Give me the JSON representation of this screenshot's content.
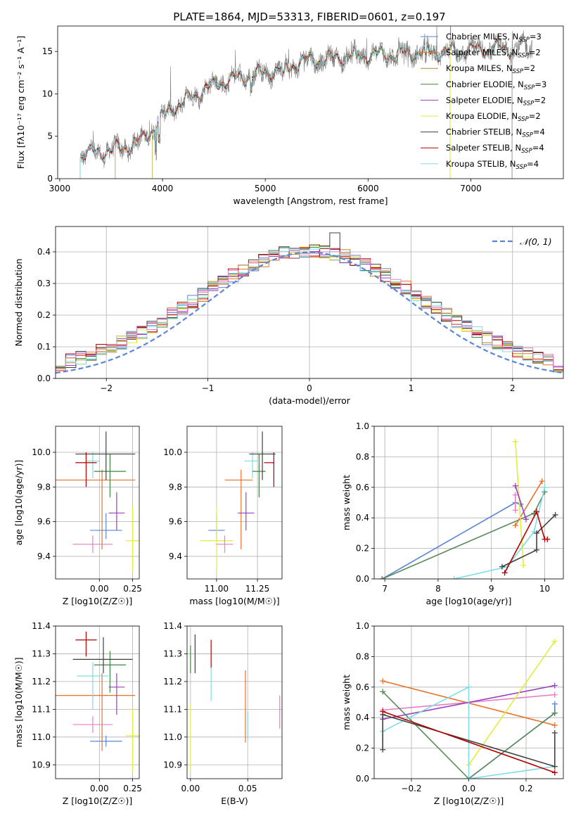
{
  "figure_title": "PLATE=1864, MJD=53313, FIBERID=0601, z=0.197",
  "colors": {
    "chabrier_miles": "#5b86d6",
    "salpeter_miles": "#e8712a",
    "kroupa_miles": "#b5862d",
    "chabrier_elodie": "#3f8443",
    "salpeter_elodie": "#9a3fbf",
    "kroupa_elodie": "#e0ee3a",
    "chabrier_stelib": "#404040",
    "salpeter_stelib": "#b30000",
    "kroupa_stelib": "#7fdde6",
    "pink": "#e87fc4",
    "darkgreen": "#5a8a5a",
    "data_gray": "#808080",
    "normal": "#5b86d6"
  },
  "chart_data": [
    {
      "id": "spectrum",
      "type": "line",
      "title": "",
      "xlabel": "wavelength [Angstrom, rest frame]",
      "ylabel": "Flux [fλ10⁻¹⁷ erg cm⁻² s⁻¹ A⁻¹]",
      "xlim": [
        2980,
        7900
      ],
      "ylim": [
        0,
        18
      ],
      "xticks": [
        3000,
        4000,
        5000,
        6000,
        7000
      ],
      "yticks": [
        0,
        5,
        10,
        15
      ],
      "legend_position": "right",
      "legend": [
        "Chabrier MILES, N_SSP=3",
        "Salpeter MILES, N_SSP=2",
        "Kroupa MILES, N_SSP=2",
        "Chabrier ELODIE, N_SSP=3",
        "Salpeter ELODIE, N_SSP=2",
        "Kroupa ELODIE, N_SSP=2",
        "Chabrier STELIB, N_SSP=4",
        "Salpeter STELIB, N_SSP=4",
        "Kroupa STELIB, N_SSP=4"
      ],
      "legend_display": [
        [
          "Chabrier MILES, N",
          "SSP",
          "=3"
        ],
        [
          "Salpeter MILES, N",
          "SSP",
          "=2"
        ],
        [
          "Kroupa MILES, N",
          "SSP",
          "=2"
        ],
        [
          "Chabrier ELODIE, N",
          "SSP",
          "=3"
        ],
        [
          "Salpeter ELODIE, N",
          "SSP",
          "=2"
        ],
        [
          "Kroupa ELODIE, N",
          "SSP",
          "=2"
        ],
        [
          "Chabrier STELIB, N",
          "SSP",
          "=4"
        ],
        [
          "Salpeter STELIB, N",
          "SSP",
          "=4"
        ],
        [
          "Kroupa STELIB, N",
          "SSP",
          "=4"
        ]
      ],
      "spectrum_envelope": {
        "x": [
          3200,
          3400,
          3600,
          3700,
          3800,
          3900,
          4000,
          4100,
          4200,
          4300,
          4400,
          4500,
          4600,
          4800,
          5000,
          5200,
          5400,
          5600,
          5800,
          6000,
          6200,
          6400,
          6600,
          6800,
          7000,
          7200,
          7400,
          7600
        ],
        "y": [
          2.8,
          3.2,
          3.6,
          4.0,
          4.6,
          5.8,
          7.3,
          8.4,
          9.0,
          9.8,
          10.5,
          11.0,
          11.5,
          12.0,
          12.5,
          13.0,
          14.0,
          14.0,
          14.5,
          14.6,
          14.6,
          14.8,
          15.0,
          15.0,
          15.2,
          15.3,
          15.3,
          15.5
        ]
      }
    },
    {
      "id": "residuals",
      "type": "histogram",
      "xlabel": "(data-model)/error",
      "ylabel": "Normed distribution",
      "xlim": [
        -2.5,
        2.5
      ],
      "ylim": [
        0,
        0.48
      ],
      "xticks": [
        -2,
        -1,
        0,
        1,
        2
      ],
      "yticks": [
        0.0,
        0.1,
        0.2,
        0.3,
        0.4
      ],
      "grid": true,
      "legend": [
        "𝒩(0, 1)"
      ],
      "legend_position": "top-right",
      "series_note_binwidth": 0.1,
      "highlight_bin": {
        "x": 0.25,
        "y": 0.46
      }
    },
    {
      "id": "age_vs_Z",
      "type": "errorbar",
      "xlabel": "Z [log10(Z/Z☉)]",
      "ylabel": "age [log10(age/yr)]",
      "xlim": [
        -0.33,
        0.3
      ],
      "ylim": [
        9.27,
        10.15
      ],
      "xticks": [
        0.0,
        0.25
      ],
      "yticks": [
        9.4,
        9.6,
        9.8,
        10.0
      ],
      "grid": true,
      "points": [
        {
          "x": 0.05,
          "y": 9.55,
          "xerr": [
            0.12,
            0.12
          ],
          "yerr": [
            0.05,
            0.1
          ],
          "c": "chabrier_miles"
        },
        {
          "x": 0.02,
          "y": 9.84,
          "xerr": [
            0.36,
            0.25
          ],
          "yerr": [
            0.4,
            0.06
          ],
          "c": "salpeter_miles"
        },
        {
          "x": -0.05,
          "y": 9.95,
          "xerr": [
            0.05,
            0.05
          ],
          "yerr": [
            0.1,
            0.05
          ],
          "c": "kroupa_stelib"
        },
        {
          "x": 0.08,
          "y": 9.89,
          "xerr": [
            0.12,
            0.12
          ],
          "yerr": [
            0.15,
            0.1
          ],
          "c": "chabrier_elodie"
        },
        {
          "x": 0.13,
          "y": 9.65,
          "xerr": [
            0.06,
            0.06
          ],
          "yerr": [
            0.1,
            0.12
          ],
          "c": "salpeter_elodie"
        },
        {
          "x": 0.25,
          "y": 9.49,
          "xerr": [
            0.05,
            0.08
          ],
          "yerr": [
            0.18,
            0.2
          ],
          "c": "kroupa_elodie"
        },
        {
          "x": 0.05,
          "y": 9.99,
          "xerr": [
            0.23,
            0.22
          ],
          "yerr": [
            0.15,
            0.13
          ],
          "c": "chabrier_stelib"
        },
        {
          "x": -0.1,
          "y": 9.94,
          "xerr": [
            0.08,
            0.08
          ],
          "yerr": [
            0.14,
            0.06
          ],
          "c": "salpeter_stelib"
        },
        {
          "x": -0.05,
          "y": 9.47,
          "xerr": [
            0.15,
            0.15
          ],
          "yerr": [
            0.05,
            0.05
          ],
          "c": "pink"
        }
      ]
    },
    {
      "id": "age_vs_mass",
      "type": "errorbar",
      "xlabel": "mass [log10(M/M☉)]",
      "ylabel": "",
      "xlim": [
        10.82,
        11.4
      ],
      "ylim": [
        9.27,
        10.15
      ],
      "xticks": [
        11.0,
        11.25
      ],
      "yticks": [
        9.4,
        9.6,
        9.8,
        10.0
      ],
      "grid": true,
      "points": [
        {
          "x": 11.0,
          "y": 9.55,
          "xerr": [
            0.05,
            0.05
          ],
          "yerr": [
            0.05,
            0.1
          ],
          "c": "chabrier_miles"
        },
        {
          "x": 11.15,
          "y": 9.84,
          "xerr": [
            0.1,
            0.07
          ],
          "yerr": [
            0.4,
            0.06
          ],
          "c": "salpeter_miles"
        },
        {
          "x": 11.22,
          "y": 9.95,
          "xerr": [
            0.05,
            0.03
          ],
          "yerr": [
            0.1,
            0.05
          ],
          "c": "kroupa_stelib"
        },
        {
          "x": 11.26,
          "y": 9.89,
          "xerr": [
            0.04,
            0.04
          ],
          "yerr": [
            0.15,
            0.1
          ],
          "c": "chabrier_elodie"
        },
        {
          "x": 11.18,
          "y": 9.65,
          "xerr": [
            0.05,
            0.05
          ],
          "yerr": [
            0.1,
            0.12
          ],
          "c": "salpeter_elodie"
        },
        {
          "x": 11.0,
          "y": 9.49,
          "xerr": [
            0.1,
            0.1
          ],
          "yerr": [
            0.18,
            0.2
          ],
          "c": "kroupa_elodie"
        },
        {
          "x": 11.28,
          "y": 9.99,
          "xerr": [
            0.08,
            0.08
          ],
          "yerr": [
            0.15,
            0.13
          ],
          "c": "chabrier_stelib"
        },
        {
          "x": 11.35,
          "y": 9.94,
          "xerr": [
            0.06,
            0.0
          ],
          "yerr": [
            0.14,
            0.06
          ],
          "c": "salpeter_stelib"
        },
        {
          "x": 11.05,
          "y": 9.47,
          "xerr": [
            0.05,
            0.05
          ],
          "yerr": [
            0.05,
            0.05
          ],
          "c": "pink"
        }
      ]
    },
    {
      "id": "weight_vs_age",
      "type": "line",
      "xlabel": "age [log10(age/yr)]",
      "ylabel": "mass weight",
      "xlim": [
        6.8,
        10.35
      ],
      "ylim": [
        0,
        1
      ],
      "xticks": [
        7,
        8,
        9,
        10
      ],
      "yticks": [
        0.0,
        0.2,
        0.4,
        0.6,
        0.8,
        1.0
      ],
      "grid": true,
      "series": [
        {
          "c": "chabrier_miles",
          "x": [
            6.95,
            9.45,
            9.55
          ],
          "y": [
            0.0,
            0.5,
            0.49
          ]
        },
        {
          "c": "darkgreen",
          "x": [
            6.95,
            9.8,
            10.0
          ],
          "y": [
            0.0,
            0.43,
            0.57
          ]
        },
        {
          "c": "salpeter_miles",
          "x": [
            9.45,
            9.95
          ],
          "y": [
            0.35,
            0.64
          ]
        },
        {
          "c": "pink",
          "x": [
            9.45,
            9.45
          ],
          "y": [
            0.45,
            0.55
          ]
        },
        {
          "c": "kroupa_elodie",
          "x": [
            9.45,
            9.6
          ],
          "y": [
            0.9,
            0.09
          ]
        },
        {
          "c": "salpeter_elodie",
          "x": [
            9.45,
            9.65
          ],
          "y": [
            0.61,
            0.39
          ]
        },
        {
          "c": "kroupa_stelib",
          "x": [
            8.3,
            9.3,
            9.8,
            10.0
          ],
          "y": [
            0.0,
            0.08,
            0.31,
            0.6
          ]
        },
        {
          "c": "chabrier_stelib",
          "x": [
            9.2,
            9.85,
            9.85,
            10.2
          ],
          "y": [
            0.08,
            0.19,
            0.3,
            0.42
          ]
        },
        {
          "c": "salpeter_stelib",
          "x": [
            9.25,
            9.85,
            10.0,
            10.05
          ],
          "y": [
            0.04,
            0.44,
            0.26,
            0.26
          ]
        }
      ]
    },
    {
      "id": "mass_vs_Z",
      "type": "errorbar",
      "xlabel": "Z [log10(Z/Z☉)]",
      "ylabel": "mass [log10(M/M☉)]",
      "xlim": [
        -0.33,
        0.3
      ],
      "ylim": [
        10.85,
        11.4
      ],
      "xticks": [
        0.0,
        0.25
      ],
      "yticks": [
        10.9,
        11.0,
        11.1,
        11.2,
        11.3,
        11.4
      ],
      "grid": true,
      "points": [
        {
          "x": 0.05,
          "y": 10.985,
          "xerr": [
            0.12,
            0.12
          ],
          "yerr": [
            0.02,
            0.02
          ],
          "c": "chabrier_miles"
        },
        {
          "x": 0.02,
          "y": 11.15,
          "xerr": [
            0.36,
            0.25
          ],
          "yerr": [
            0.2,
            0.08
          ],
          "c": "salpeter_miles"
        },
        {
          "x": -0.05,
          "y": 11.22,
          "xerr": [
            0.12,
            0.12
          ],
          "yerr": [
            0.12,
            0.05
          ],
          "c": "kroupa_stelib"
        },
        {
          "x": 0.08,
          "y": 11.26,
          "xerr": [
            0.12,
            0.12
          ],
          "yerr": [
            0.1,
            0.05
          ],
          "c": "chabrier_elodie"
        },
        {
          "x": 0.13,
          "y": 11.18,
          "xerr": [
            0.06,
            0.06
          ],
          "yerr": [
            0.1,
            0.05
          ],
          "c": "salpeter_elodie"
        },
        {
          "x": 0.25,
          "y": 11.005,
          "xerr": [
            0.05,
            0.08
          ],
          "yerr": [
            0.13,
            0.1
          ],
          "c": "kroupa_elodie"
        },
        {
          "x": 0.03,
          "y": 11.28,
          "xerr": [
            0.23,
            0.22
          ],
          "yerr": [
            0.05,
            0.08
          ],
          "c": "chabrier_stelib"
        },
        {
          "x": -0.1,
          "y": 11.35,
          "xerr": [
            0.08,
            0.08
          ],
          "yerr": [
            0.06,
            0.03
          ],
          "c": "salpeter_stelib"
        },
        {
          "x": -0.05,
          "y": 11.045,
          "xerr": [
            0.15,
            0.15
          ],
          "yerr": [
            0.03,
            0.03
          ],
          "c": "pink"
        }
      ]
    },
    {
      "id": "mass_vs_ebv",
      "type": "errorbar",
      "xlabel": "E(B-V)",
      "ylabel": "",
      "xlim": [
        -0.003,
        0.08
      ],
      "ylim": [
        10.85,
        11.4
      ],
      "xticks": [
        0.0,
        0.05
      ],
      "yticks": [
        10.9,
        11.0,
        11.1,
        11.2,
        11.3,
        11.4
      ],
      "grid": true,
      "points": [
        {
          "x": 0.0,
          "y": 11.0,
          "yerr": [
            0.12,
            0.12
          ],
          "c": "kroupa_elodie"
        },
        {
          "x": 0.0,
          "y": 11.28,
          "yerr": [
            0.05,
            0.05
          ],
          "c": "chabrier_elodie"
        },
        {
          "x": 0.004,
          "y": 11.3,
          "yerr": [
            0.07,
            0.07
          ],
          "c": "chabrier_stelib"
        },
        {
          "x": 0.018,
          "y": 11.3,
          "yerr": [
            0.05,
            0.05
          ],
          "c": "salpeter_stelib"
        },
        {
          "x": 0.018,
          "y": 11.19,
          "yerr": [
            0.06,
            0.06
          ],
          "c": "kroupa_stelib"
        },
        {
          "x": 0.048,
          "y": 11.11,
          "yerr": [
            0.13,
            0.13
          ],
          "c": "salpeter_miles"
        },
        {
          "x": 0.05,
          "y": 11.04,
          "yerr": [
            0.05,
            0.05
          ],
          "c": "kroupa_stelib"
        },
        {
          "x": 0.078,
          "y": 11.09,
          "yerr": [
            0.06,
            0.06
          ],
          "c": "pink"
        }
      ]
    },
    {
      "id": "weight_vs_Z",
      "type": "line",
      "xlabel": "Z [log10(Z/Z☉)]",
      "ylabel": "mass weight",
      "xlim": [
        -0.33,
        0.33
      ],
      "ylim": [
        0,
        1
      ],
      "xticks": [
        -0.2,
        0.0,
        0.2
      ],
      "yticks": [
        0.0,
        0.2,
        0.4,
        0.6,
        0.8,
        1.0
      ],
      "grid": true,
      "series": [
        {
          "c": "salpeter_miles",
          "x": [
            -0.3,
            0.3
          ],
          "y": [
            0.64,
            0.35
          ]
        },
        {
          "c": "pink",
          "x": [
            -0.3,
            0.3
          ],
          "y": [
            0.45,
            0.55
          ]
        },
        {
          "c": "salpeter_elodie",
          "x": [
            -0.3,
            0.3
          ],
          "y": [
            0.39,
            0.61
          ]
        },
        {
          "c": "kroupa_elodie",
          "x": [
            0.0,
            0.3
          ],
          "y": [
            0.09,
            0.9
          ]
        },
        {
          "c": "chabrier_miles",
          "x": [
            0.0,
            0.3,
            0.3
          ],
          "y": [
            0.0,
            0.43,
            0.49
          ]
        },
        {
          "c": "darkgreen",
          "x": [
            -0.3,
            0.0,
            0.3,
            0.3
          ],
          "y": [
            0.57,
            0.0,
            0.43,
            0.43
          ]
        },
        {
          "c": "kroupa_stelib",
          "x": [
            -0.3,
            0.0,
            0.0,
            0.3
          ],
          "y": [
            0.31,
            0.6,
            0.0,
            0.08
          ]
        },
        {
          "c": "chabrier_stelib",
          "x": [
            -0.3,
            -0.3,
            0.3,
            0.3
          ],
          "y": [
            0.19,
            0.42,
            0.08,
            0.3
          ]
        },
        {
          "c": "salpeter_stelib",
          "x": [
            -0.3,
            0.3
          ],
          "y": [
            0.44,
            0.04
          ]
        }
      ]
    }
  ]
}
